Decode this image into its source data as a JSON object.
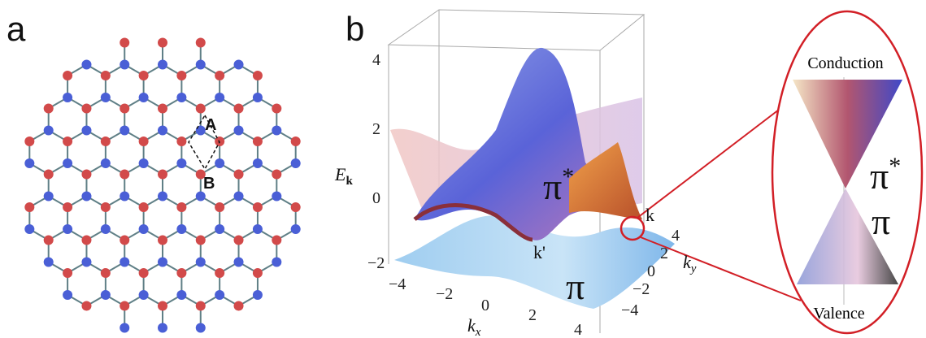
{
  "panel_a": {
    "label": "a",
    "site_a": "A",
    "site_b": "B"
  },
  "panel_b": {
    "label": "b",
    "z_axis": {
      "label": "E",
      "subscript": "k",
      "ticks": [
        "4",
        "2",
        "0",
        "−2"
      ]
    },
    "x_axis": {
      "label": "k",
      "subscript": "x",
      "ticks": [
        "−4",
        "−2",
        "0",
        "2",
        "4"
      ]
    },
    "y_axis": {
      "label": "k",
      "subscript": "y",
      "ticks": [
        "4",
        "2",
        "0",
        "−2",
        "−4"
      ]
    },
    "upper_band": {
      "base": "π",
      "sup": "*"
    },
    "lower_band": "π",
    "point_k": "k",
    "point_k_prime": "k'"
  },
  "inset": {
    "top": "Conduction",
    "bottom": "Valence",
    "upper_band": {
      "base": "π",
      "sup": "*"
    },
    "lower_band": "π"
  }
}
